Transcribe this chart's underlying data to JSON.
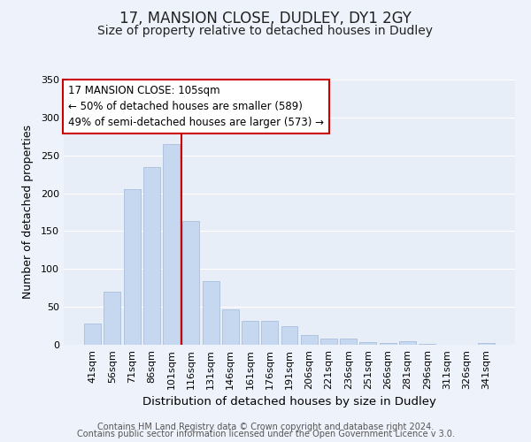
{
  "title": "17, MANSION CLOSE, DUDLEY, DY1 2GY",
  "subtitle": "Size of property relative to detached houses in Dudley",
  "xlabel": "Distribution of detached houses by size in Dudley",
  "ylabel": "Number of detached properties",
  "categories": [
    "41sqm",
    "56sqm",
    "71sqm",
    "86sqm",
    "101sqm",
    "116sqm",
    "131sqm",
    "146sqm",
    "161sqm",
    "176sqm",
    "191sqm",
    "206sqm",
    "221sqm",
    "236sqm",
    "251sqm",
    "266sqm",
    "281sqm",
    "296sqm",
    "311sqm",
    "326sqm",
    "341sqm"
  ],
  "values": [
    28,
    70,
    205,
    234,
    265,
    163,
    84,
    47,
    31,
    31,
    25,
    13,
    8,
    8,
    4,
    2,
    5,
    1,
    0,
    0,
    2
  ],
  "bar_color": "#c5d8f0",
  "bar_edge_color": "#a0b8d8",
  "vline_x": 4.5,
  "vline_color": "#cc0000",
  "ylim": [
    0,
    350
  ],
  "yticks": [
    0,
    50,
    100,
    150,
    200,
    250,
    300,
    350
  ],
  "annotation_title": "17 MANSION CLOSE: 105sqm",
  "annotation_line1": "← 50% of detached houses are smaller (589)",
  "annotation_line2": "49% of semi-detached houses are larger (573) →",
  "annotation_box_color": "#ffffff",
  "annotation_box_edge": "#cc0000",
  "footer1": "Contains HM Land Registry data © Crown copyright and database right 2024.",
  "footer2": "Contains public sector information licensed under the Open Government Licence v 3.0.",
  "bg_color": "#eef2fa",
  "plot_bg_color": "#e8eef8",
  "grid_color": "#ffffff",
  "title_fontsize": 12,
  "subtitle_fontsize": 10,
  "xlabel_fontsize": 9.5,
  "ylabel_fontsize": 9,
  "tick_fontsize": 8,
  "footer_fontsize": 7,
  "ann_fontsize": 8.5
}
